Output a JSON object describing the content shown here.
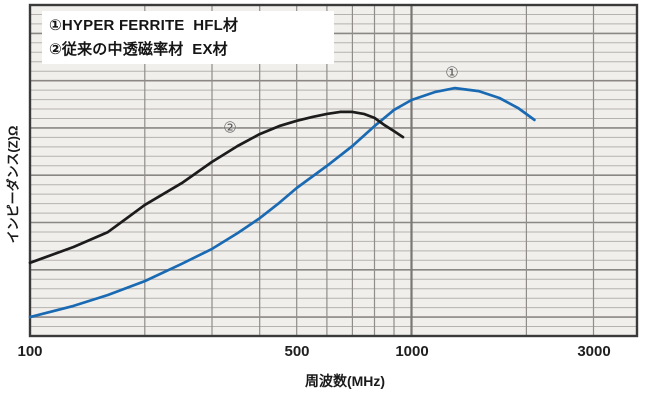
{
  "chart_data": {
    "type": "line",
    "title": "",
    "x_axis": {
      "label": "周波数(MHz)",
      "scale": "log",
      "min": 100,
      "max": 3900,
      "ticks": [
        {
          "value": 100,
          "label": "100"
        },
        {
          "value": 500,
          "label": "500"
        },
        {
          "value": 1000,
          "label": "1000"
        },
        {
          "value": 3000,
          "label": "3000"
        }
      ],
      "gridlines": [
        200,
        300,
        400,
        500,
        600,
        700,
        800,
        900,
        1000,
        2000,
        3000
      ]
    },
    "y_axis": {
      "label": "インピーダンス(Z)Ω",
      "tick_labels": []
    },
    "legend_position": "top-left",
    "grid": true,
    "series": [
      {
        "name": "①HYPER FERRITE  HFL材",
        "marker_glyph": "①",
        "color": "#1a6ab3",
        "points_f_mhz_z_rel": [
          [
            100,
            5.7
          ],
          [
            130,
            9.1
          ],
          [
            160,
            12.4
          ],
          [
            200,
            16.6
          ],
          [
            250,
            21.8
          ],
          [
            300,
            26.3
          ],
          [
            350,
            31.1
          ],
          [
            400,
            35.6
          ],
          [
            450,
            40.2
          ],
          [
            500,
            44.7
          ],
          [
            600,
            51.4
          ],
          [
            700,
            57.4
          ],
          [
            800,
            63.4
          ],
          [
            900,
            68.3
          ],
          [
            1000,
            71.3
          ],
          [
            1150,
            73.7
          ],
          [
            1300,
            74.9
          ],
          [
            1500,
            74.0
          ],
          [
            1700,
            71.9
          ],
          [
            1900,
            68.9
          ],
          [
            2100,
            65.3
          ]
        ]
      },
      {
        "name": "②従来の中透磁率材  EX材",
        "marker_glyph": "②",
        "color": "#1c1c1c",
        "points_f_mhz_z_rel": [
          [
            100,
            22.1
          ],
          [
            130,
            26.9
          ],
          [
            160,
            31.4
          ],
          [
            200,
            39.6
          ],
          [
            250,
            46.2
          ],
          [
            300,
            52.6
          ],
          [
            350,
            57.4
          ],
          [
            400,
            61.0
          ],
          [
            450,
            63.4
          ],
          [
            500,
            65.0
          ],
          [
            550,
            66.2
          ],
          [
            600,
            67.1
          ],
          [
            650,
            67.7
          ],
          [
            700,
            67.7
          ],
          [
            750,
            67.1
          ],
          [
            800,
            65.9
          ],
          [
            850,
            63.7
          ],
          [
            900,
            61.9
          ],
          [
            950,
            60.1
          ]
        ]
      }
    ],
    "curve_markers": [
      {
        "glyph": "①",
        "f_mhz": 1280,
        "z_rel": 79.5
      },
      {
        "glyph": "②",
        "f_mhz": 335,
        "z_rel": 62.8
      }
    ],
    "colors": {
      "plot_background": "#f1efec",
      "grid_minor": "#b5b2af",
      "grid_major": "#8a8784",
      "grid_vertical": "#908d8a",
      "border": "#3a3a3a",
      "series1": "#1a6ab3",
      "series2": "#1c1c1c"
    }
  },
  "legend": {
    "line1": "①HYPER FERRITE  HFL材",
    "line2": "②従来の中透磁率材  EX材"
  },
  "labels": {
    "y_axis": "インピーダンス(Z)Ω",
    "x_axis": "周波数(MHz)"
  }
}
